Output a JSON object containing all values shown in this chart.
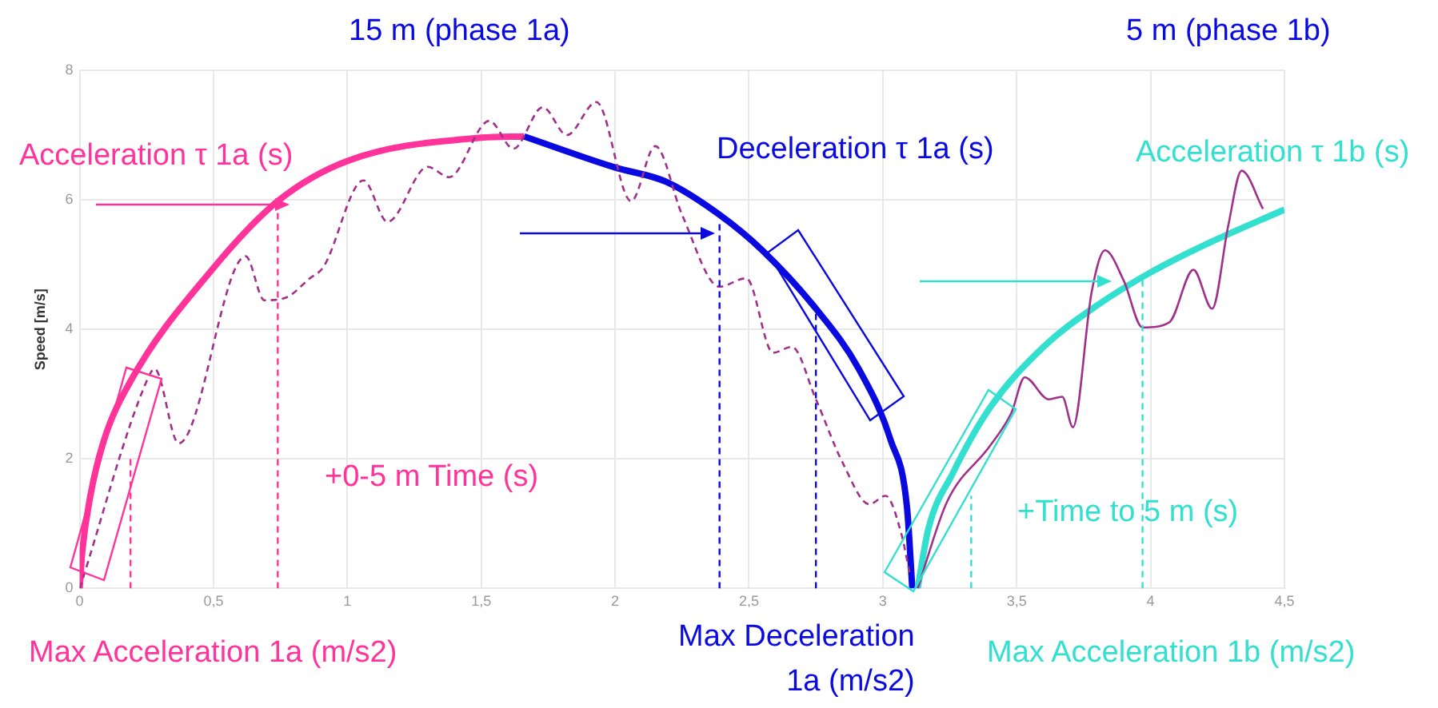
{
  "chart_data": {
    "type": "line",
    "ylabel": "Speed [m/s]",
    "xlim": [
      0,
      4.5
    ],
    "xticks": [
      0,
      {
        "value": 0.5,
        "label": "0,5"
      },
      1,
      {
        "value": 1.5,
        "label": "1,5"
      },
      2,
      {
        "value": 2.5,
        "label": "2,5"
      },
      3,
      {
        "value": 3.5,
        "label": "3,5"
      },
      4,
      {
        "value": 4.5,
        "label": "4,5"
      }
    ],
    "ylim": [
      0,
      8
    ],
    "yticks": [
      0,
      2,
      4,
      6,
      8
    ],
    "grid": true,
    "legend": false,
    "marker": "none",
    "series": [
      {
        "color": "#ff3399",
        "line_style": "solid",
        "x": [
          0,
          0.01,
          0.04,
          0.09,
          0.19,
          0.49,
          0.74,
          1.0,
          1.5,
          1.66
        ],
        "values": [
          0,
          0.58,
          1.43,
          2.28,
          3.2,
          4.9,
          5.98,
          6.6,
          6.96,
          6.98
        ]
      },
      {
        "color": "#0a0ae0",
        "line_style": "solid",
        "x": [
          1.66,
          2.0,
          2.19,
          2.39,
          2.55,
          2.75,
          2.91,
          3.03,
          3.09,
          3.11
        ],
        "values": [
          6.98,
          6.5,
          6.28,
          5.77,
          5.22,
          4.32,
          3.39,
          2.28,
          1.26,
          0
        ]
      },
      {
        "color": "#33e0d0",
        "line_style": "solid",
        "x": [
          3.13,
          3.17,
          3.26,
          3.4,
          3.6,
          3.8,
          4.0,
          4.2,
          4.5
        ],
        "values": [
          0,
          0.92,
          1.77,
          2.79,
          3.73,
          4.37,
          4.88,
          5.3,
          5.85
        ]
      },
      {
        "color": "#a0308a",
        "line_style": "dashed",
        "x": [
          0,
          0.25,
          0.28,
          0.37,
          0.62,
          0.69,
          0.77,
          0.86,
          0.91,
          1.06,
          1.15,
          1.3,
          1.38,
          1.53,
          1.62,
          1.73,
          1.82,
          1.93,
          2.06,
          2.15,
          2.25,
          2.39,
          2.49,
          2.59,
          2.66,
          2.75,
          2.85,
          2.95,
          3.01,
          3.07,
          3.1
        ],
        "values": [
          0,
          3.2,
          3.39,
          2.24,
          5.13,
          4.45,
          4.49,
          4.79,
          4.96,
          6.3,
          5.66,
          6.51,
          6.35,
          7.22,
          6.79,
          7.43,
          7.0,
          7.51,
          5.98,
          6.83,
          5.77,
          4.66,
          4.79,
          3.64,
          3.73,
          2.92,
          1.94,
          1.3,
          1.43,
          0.83,
          0.24
        ]
      },
      {
        "color": "#a0308a",
        "line_style": "solid",
        "x": [
          3.13,
          3.24,
          3.4,
          3.48,
          3.53,
          3.62,
          3.67,
          3.71,
          3.78,
          3.83,
          3.9,
          3.97,
          4.07,
          4.16,
          4.23,
          4.29,
          4.34,
          4.42
        ],
        "values": [
          0,
          1.34,
          2.2,
          2.71,
          3.26,
          2.92,
          2.96,
          2.49,
          4.58,
          5.22,
          4.75,
          4.03,
          4.11,
          4.92,
          4.32,
          5.6,
          6.45,
          5.86
        ]
      },
      {
        "color": "#ff3399",
        "line_style": "dashed",
        "x": [
          0.19,
          0.19
        ],
        "values": [
          0,
          2.0
        ]
      },
      {
        "color": "#ff3399",
        "line_style": "dashed",
        "x": [
          0.74,
          0.74
        ],
        "values": [
          0,
          5.98
        ]
      },
      {
        "color": "#0a0ae0",
        "line_style": "dashed",
        "x": [
          2.39,
          2.39
        ],
        "values": [
          0,
          5.68
        ]
      },
      {
        "color": "#0a0ae0",
        "line_style": "dashed",
        "x": [
          2.75,
          2.75
        ],
        "values": [
          0,
          4.24
        ]
      },
      {
        "color": "#33e0d0",
        "line_style": "dashed",
        "x": [
          3.33,
          3.33
        ],
        "values": [
          0,
          1.43
        ]
      },
      {
        "color": "#33e0d0",
        "line_style": "dashed",
        "x": [
          3.97,
          3.97
        ],
        "values": [
          0,
          4.83
        ]
      }
    ],
    "annotations": [
      "15 m (phase 1a)",
      "5 m (phase 1b)",
      "Acceleration τ 1a (s)",
      "Deceleration τ 1a (s)",
      "Acceleration τ 1b (s)",
      "+0-5 m Time (s)",
      "+Time to 5 m (s)",
      "Max Acceleration 1a (m/s2)",
      "Max Deceleration\n1a (m/s2)",
      "Max Acceleration 1b (m/s2)"
    ]
  }
}
